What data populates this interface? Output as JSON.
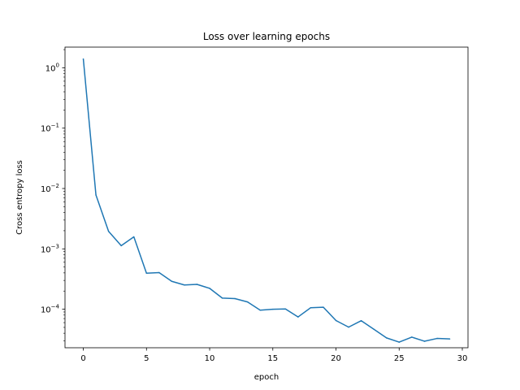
{
  "chart_data": {
    "type": "line",
    "title": "Loss over learning epochs",
    "xlabel": "epoch",
    "ylabel": "Cross entropy loss",
    "yscale": "log",
    "xlim": [
      -1.45,
      30.45
    ],
    "ylim": [
      2.3e-05,
      2.2
    ],
    "grid": false,
    "legend": "none",
    "x_ticks": [
      0,
      5,
      10,
      15,
      20,
      25,
      30
    ],
    "x_tick_labels": [
      "0",
      "5",
      "10",
      "15",
      "20",
      "25",
      "30"
    ],
    "y_ticks": [
      1,
      0.1,
      0.01,
      0.001,
      0.0001
    ],
    "y_tick_labels": [
      {
        "base": "10",
        "exp": "0"
      },
      {
        "base": "10",
        "exp": "−1"
      },
      {
        "base": "10",
        "exp": "−2"
      },
      {
        "base": "10",
        "exp": "−3"
      },
      {
        "base": "10",
        "exp": "−4"
      }
    ],
    "series": [
      {
        "color": "#1f77b4",
        "x": [
          0,
          1,
          2,
          3,
          4,
          5,
          6,
          7,
          8,
          9,
          10,
          11,
          12,
          13,
          14,
          15,
          16,
          17,
          18,
          19,
          20,
          21,
          22,
          23,
          24,
          25,
          26,
          27,
          28,
          29
        ],
        "values": [
          1.4,
          0.0078,
          0.00195,
          0.00113,
          0.00158,
          0.000395,
          0.000405,
          0.00029,
          0.000252,
          0.000258,
          0.000222,
          0.000153,
          0.00015,
          0.000132,
          9.65e-05,
          0.0001,
          0.000101,
          7.45e-05,
          0.000106,
          0.000108,
          6.5e-05,
          5.05e-05,
          6.45e-05,
          4.65e-05,
          3.35e-05,
          2.85e-05,
          3.45e-05,
          2.95e-05,
          3.28e-05,
          3.22e-05
        ]
      }
    ]
  }
}
